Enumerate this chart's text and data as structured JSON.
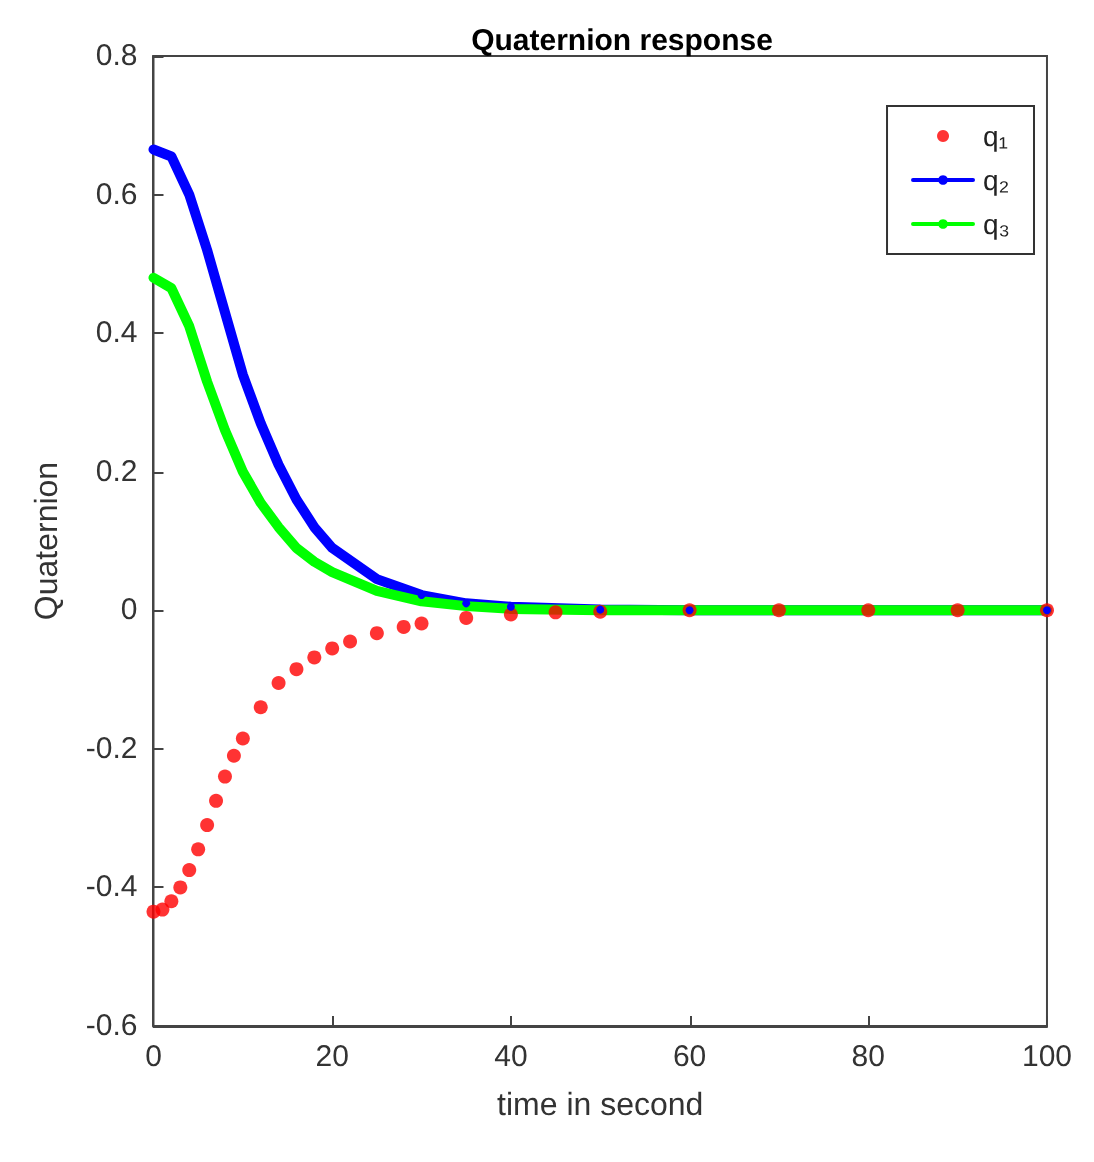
{
  "chart_data": {
    "type": "line",
    "title": "Quaternion response",
    "xlabel": "time in second",
    "ylabel": "Quaternion",
    "xlim": [
      0,
      100
    ],
    "xticks": [
      0,
      20,
      40,
      60,
      80,
      100
    ],
    "ylim": [
      -0.6,
      0.8
    ],
    "yticks": [
      -0.6,
      -0.4,
      -0.2,
      0,
      0.2,
      0.4,
      0.6,
      0.8
    ],
    "grid": false,
    "legend": "top right",
    "series": [
      {
        "name": "q₁",
        "type": "scatter",
        "marker": "circle",
        "color": "#ff0000",
        "x": [
          0,
          1,
          2,
          3,
          4,
          5,
          6,
          7,
          8,
          9,
          10,
          12,
          14,
          16,
          18,
          20,
          22,
          25,
          28,
          30,
          35,
          40,
          45,
          50,
          60,
          70,
          80,
          90,
          100
        ],
        "values": [
          -0.435,
          -0.432,
          -0.42,
          -0.4,
          -0.375,
          -0.345,
          -0.31,
          -0.275,
          -0.24,
          -0.21,
          -0.185,
          -0.14,
          -0.105,
          -0.085,
          -0.068,
          -0.055,
          -0.045,
          -0.033,
          -0.024,
          -0.019,
          -0.011,
          -0.006,
          -0.003,
          -0.002,
          0,
          0,
          0,
          0,
          0
        ]
      },
      {
        "name": "q₂",
        "marker": "circle",
        "color": "#0000ff",
        "x": [
          0,
          2,
          4,
          6,
          8,
          10,
          12,
          14,
          16,
          18,
          20,
          25,
          30,
          35,
          40,
          50,
          60,
          100
        ],
        "values": [
          0.665,
          0.655,
          0.6,
          0.52,
          0.43,
          0.34,
          0.27,
          0.21,
          0.16,
          0.12,
          0.09,
          0.045,
          0.022,
          0.01,
          0.005,
          0.001,
          0,
          0
        ]
      },
      {
        "name": "q₃",
        "marker": "none",
        "color": "#00ff00",
        "x": [
          0,
          2,
          4,
          6,
          8,
          10,
          12,
          14,
          16,
          18,
          20,
          25,
          30,
          35,
          40,
          50,
          100
        ],
        "values": [
          0.48,
          0.465,
          0.41,
          0.33,
          0.26,
          0.2,
          0.155,
          0.12,
          0.09,
          0.07,
          0.055,
          0.028,
          0.013,
          0.006,
          0.002,
          0,
          0
        ]
      }
    ]
  }
}
